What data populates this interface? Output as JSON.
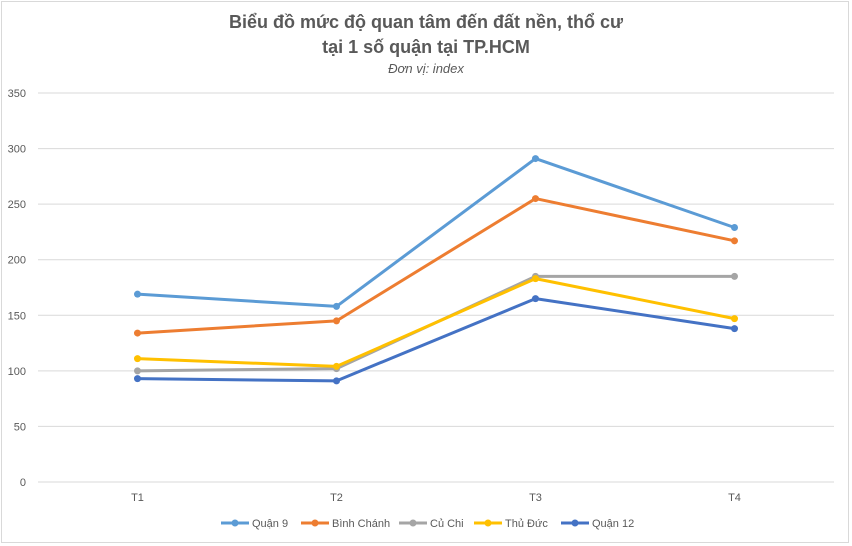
{
  "chart_data": {
    "type": "line",
    "title_line1": "Biểu đồ mức độ quan tâm đến đất nền, thổ cư",
    "title_line2": "tại 1 số quận tại TP.HCM",
    "subtitle": "Đơn vị: index",
    "categories": [
      "T1",
      "T2",
      "T3",
      "T4"
    ],
    "ylim": [
      0,
      350
    ],
    "yticks": [
      0,
      50,
      100,
      150,
      200,
      250,
      300,
      350
    ],
    "grid": true,
    "legend_position": "bottom",
    "series": [
      {
        "name": "Quận 9",
        "color": "#5b9bd5",
        "values": [
          169,
          158,
          291,
          229
        ]
      },
      {
        "name": "Bình Chánh",
        "color": "#ed7d31",
        "values": [
          134,
          145,
          255,
          217
        ]
      },
      {
        "name": "Củ Chi",
        "color": "#a5a5a5",
        "values": [
          100,
          102,
          185,
          185
        ]
      },
      {
        "name": "Thủ Đức",
        "color": "#ffc000",
        "values": [
          111,
          104,
          183,
          147
        ]
      },
      {
        "name": "Quận 12",
        "color": "#4472c4",
        "values": [
          93,
          91,
          165,
          138
        ]
      }
    ]
  }
}
